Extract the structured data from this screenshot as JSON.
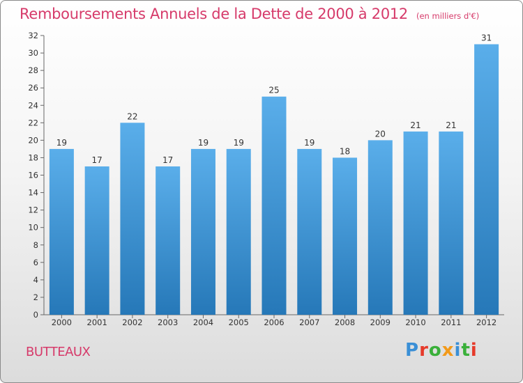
{
  "header": {
    "title": "Remboursements Annuels de la Dette de 2000 à 2012",
    "unit": "(en milliers d'€)"
  },
  "commune": "BUTTEAUX",
  "logo": {
    "text": "Proxiti",
    "letters": [
      {
        "ch": "P",
        "color": "#3a8fd6"
      },
      {
        "ch": "r",
        "color": "#e63a2a"
      },
      {
        "ch": "o",
        "color": "#3ab03a"
      },
      {
        "ch": "x",
        "color": "#f29a1a"
      },
      {
        "ch": "i",
        "color": "#3a8fd6"
      },
      {
        "ch": "t",
        "color": "#3ab03a"
      },
      {
        "ch": "i",
        "color": "#e63a2a"
      }
    ]
  },
  "chart_data": {
    "type": "bar",
    "categories": [
      "2000",
      "2001",
      "2002",
      "2003",
      "2004",
      "2005",
      "2006",
      "2007",
      "2008",
      "2009",
      "2010",
      "2011",
      "2012"
    ],
    "values": [
      19,
      17,
      22,
      17,
      19,
      19,
      25,
      19,
      18,
      20,
      21,
      21,
      31
    ],
    "title": "Remboursements Annuels de la Dette de 2000 à 2012",
    "xlabel": "",
    "ylabel": "",
    "ylim": [
      0,
      32
    ],
    "yticks": [
      0,
      2,
      4,
      6,
      8,
      10,
      12,
      14,
      16,
      18,
      20,
      22,
      24,
      26,
      28,
      30,
      32
    ],
    "grid": false,
    "data_labels": true,
    "colors": {
      "bar_top": "#5aaeea",
      "bar_bottom": "#2678b8",
      "axis": "#666666",
      "tick_text": "#333333",
      "accent": "#d63a6a"
    }
  }
}
